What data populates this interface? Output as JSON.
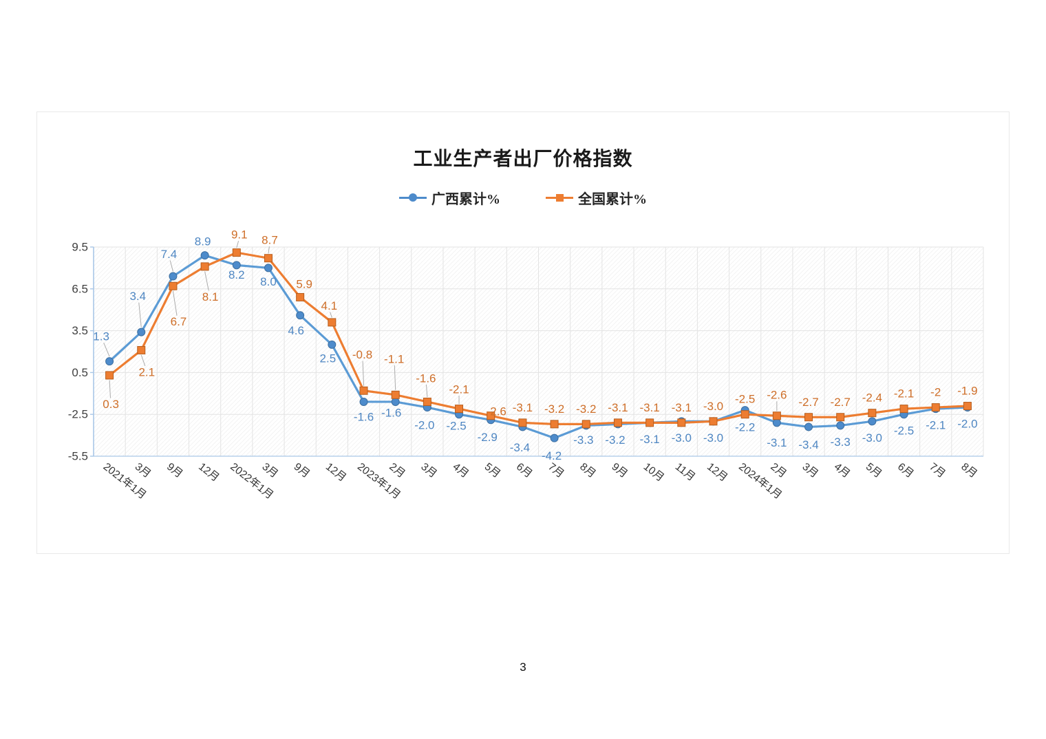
{
  "page_number": "3",
  "colors": {
    "axis": "#A9C7E7",
    "grid": "#E3E3E3",
    "hatch": "#EDEDED",
    "tick_label": "#404040",
    "x_label": "#333333",
    "leader": "#ABABAB",
    "box_border": "#E9E9E9"
  },
  "chart_data": {
    "type": "line",
    "title": "工业生产者出厂价格指数",
    "legend_position": "top",
    "grid": true,
    "plot_fill": "diagonal-hatch",
    "ylim": [
      -5.5,
      9.5
    ],
    "y_ticks": [
      9.5,
      6.5,
      3.5,
      0.5,
      -2.5,
      -5.5
    ],
    "categories": [
      "2021年1月",
      "3月",
      "9月",
      "12月",
      "2022年1月",
      "3月",
      "9月",
      "12月",
      "2023年1月",
      "2月",
      "3月",
      "4月",
      "5月",
      "6月",
      "7月",
      "8月",
      "9月",
      "10月",
      "11月",
      "12月",
      "2024年1月",
      "2月",
      "3月",
      "4月",
      "5月",
      "6月",
      "7月",
      "8月"
    ],
    "series": [
      {
        "id": "guangxi",
        "name": "广西累计%",
        "marker": "circle",
        "color_line": "#5B9BD5",
        "color_fill": "#4D8BCB",
        "color_edge": "#3C6E9F",
        "color_label": "#4E86C2",
        "values": [
          1.3,
          3.4,
          7.4,
          8.9,
          8.2,
          8.0,
          4.6,
          2.5,
          -1.6,
          -1.6,
          -2.0,
          -2.5,
          -2.9,
          -3.4,
          -4.2,
          -3.3,
          -3.2,
          -3.1,
          -3.0,
          -3.0,
          -2.2,
          -3.1,
          -3.4,
          -3.3,
          -3.0,
          -2.5,
          -2.1,
          -2.0
        ],
        "labels": [
          "1.3",
          "3.4",
          "7.4",
          "8.9",
          "8.2",
          "8.0",
          "4.6",
          "2.5",
          "-1.6",
          "-1.6",
          "-2.0",
          "-2.5",
          "-2.9",
          "-3.4",
          "-4.2",
          "-3.3",
          "-3.2",
          "-3.1",
          "-3.0",
          "-3.0",
          "-2.2",
          "-3.1",
          "-3.4",
          "-3.3",
          "-3.0",
          "-2.5",
          "-2.1",
          "-2.0"
        ],
        "label_dx": [
          -12,
          -5,
          -6,
          -3,
          0,
          0,
          -6,
          -6,
          0,
          -6,
          -4,
          -4,
          -5,
          -4,
          -4,
          -4,
          -4,
          0,
          0,
          0,
          0,
          0,
          0,
          0,
          0,
          0,
          0,
          0
        ],
        "label_dy": [
          -36,
          -52,
          -32,
          -20,
          14,
          20,
          22,
          20,
          22,
          16,
          26,
          17,
          25,
          30,
          26,
          21,
          23,
          24,
          24,
          24,
          25,
          29,
          26,
          24,
          24,
          24,
          24,
          24
        ],
        "leader": [
          true,
          true,
          true,
          false,
          false,
          false,
          false,
          false,
          false,
          false,
          false,
          false,
          false,
          false,
          false,
          false,
          false,
          false,
          false,
          false,
          false,
          false,
          false,
          false,
          false,
          false,
          false,
          false
        ]
      },
      {
        "id": "national",
        "name": "全国累计%",
        "marker": "square",
        "color_line": "#ED7D31",
        "color_fill": "#ED7D31",
        "color_edge": "#B65D1D",
        "color_label": "#CE6E28",
        "values": [
          0.3,
          2.1,
          6.7,
          8.1,
          9.1,
          8.7,
          5.9,
          4.1,
          -0.8,
          -1.1,
          -1.6,
          -2.1,
          -2.6,
          -3.1,
          -3.2,
          -3.2,
          -3.1,
          -3.1,
          -3.1,
          -3.0,
          -2.5,
          -2.6,
          -2.7,
          -2.7,
          -2.4,
          -2.1,
          -2,
          -1.9
        ],
        "labels": [
          "0.3",
          "2.1",
          "6.7",
          "8.1",
          "9.1",
          "8.7",
          "5.9",
          "4.1",
          "-0.8",
          "-1.1",
          "-1.6",
          "-2.1",
          "-2.6",
          "-3.1",
          "-3.2",
          "-3.2",
          "-3.1",
          "-3.1",
          "-3.1",
          "-3.0",
          "-2.5",
          "-2.6",
          "-2.7",
          "-2.7",
          "-2.4",
          "-2.1",
          "-2",
          "-1.9"
        ],
        "label_dx": [
          2,
          8,
          8,
          8,
          4,
          2,
          6,
          -4,
          -2,
          -2,
          -2,
          0,
          8,
          0,
          0,
          0,
          0,
          0,
          0,
          0,
          0,
          0,
          0,
          0,
          0,
          0,
          0,
          0
        ],
        "label_dy": [
          42,
          32,
          52,
          44,
          -26,
          -26,
          -19,
          -24,
          -52,
          -52,
          -34,
          -28,
          -6,
          -22,
          -22,
          -22,
          -22,
          -22,
          -22,
          -22,
          -22,
          -30,
          -22,
          -22,
          -22,
          -22,
          -22,
          -22
        ],
        "leader": [
          true,
          true,
          true,
          true,
          true,
          true,
          false,
          true,
          true,
          true,
          true,
          true,
          false,
          false,
          false,
          false,
          false,
          false,
          false,
          false,
          false,
          true,
          false,
          false,
          false,
          false,
          false,
          false
        ]
      }
    ]
  }
}
